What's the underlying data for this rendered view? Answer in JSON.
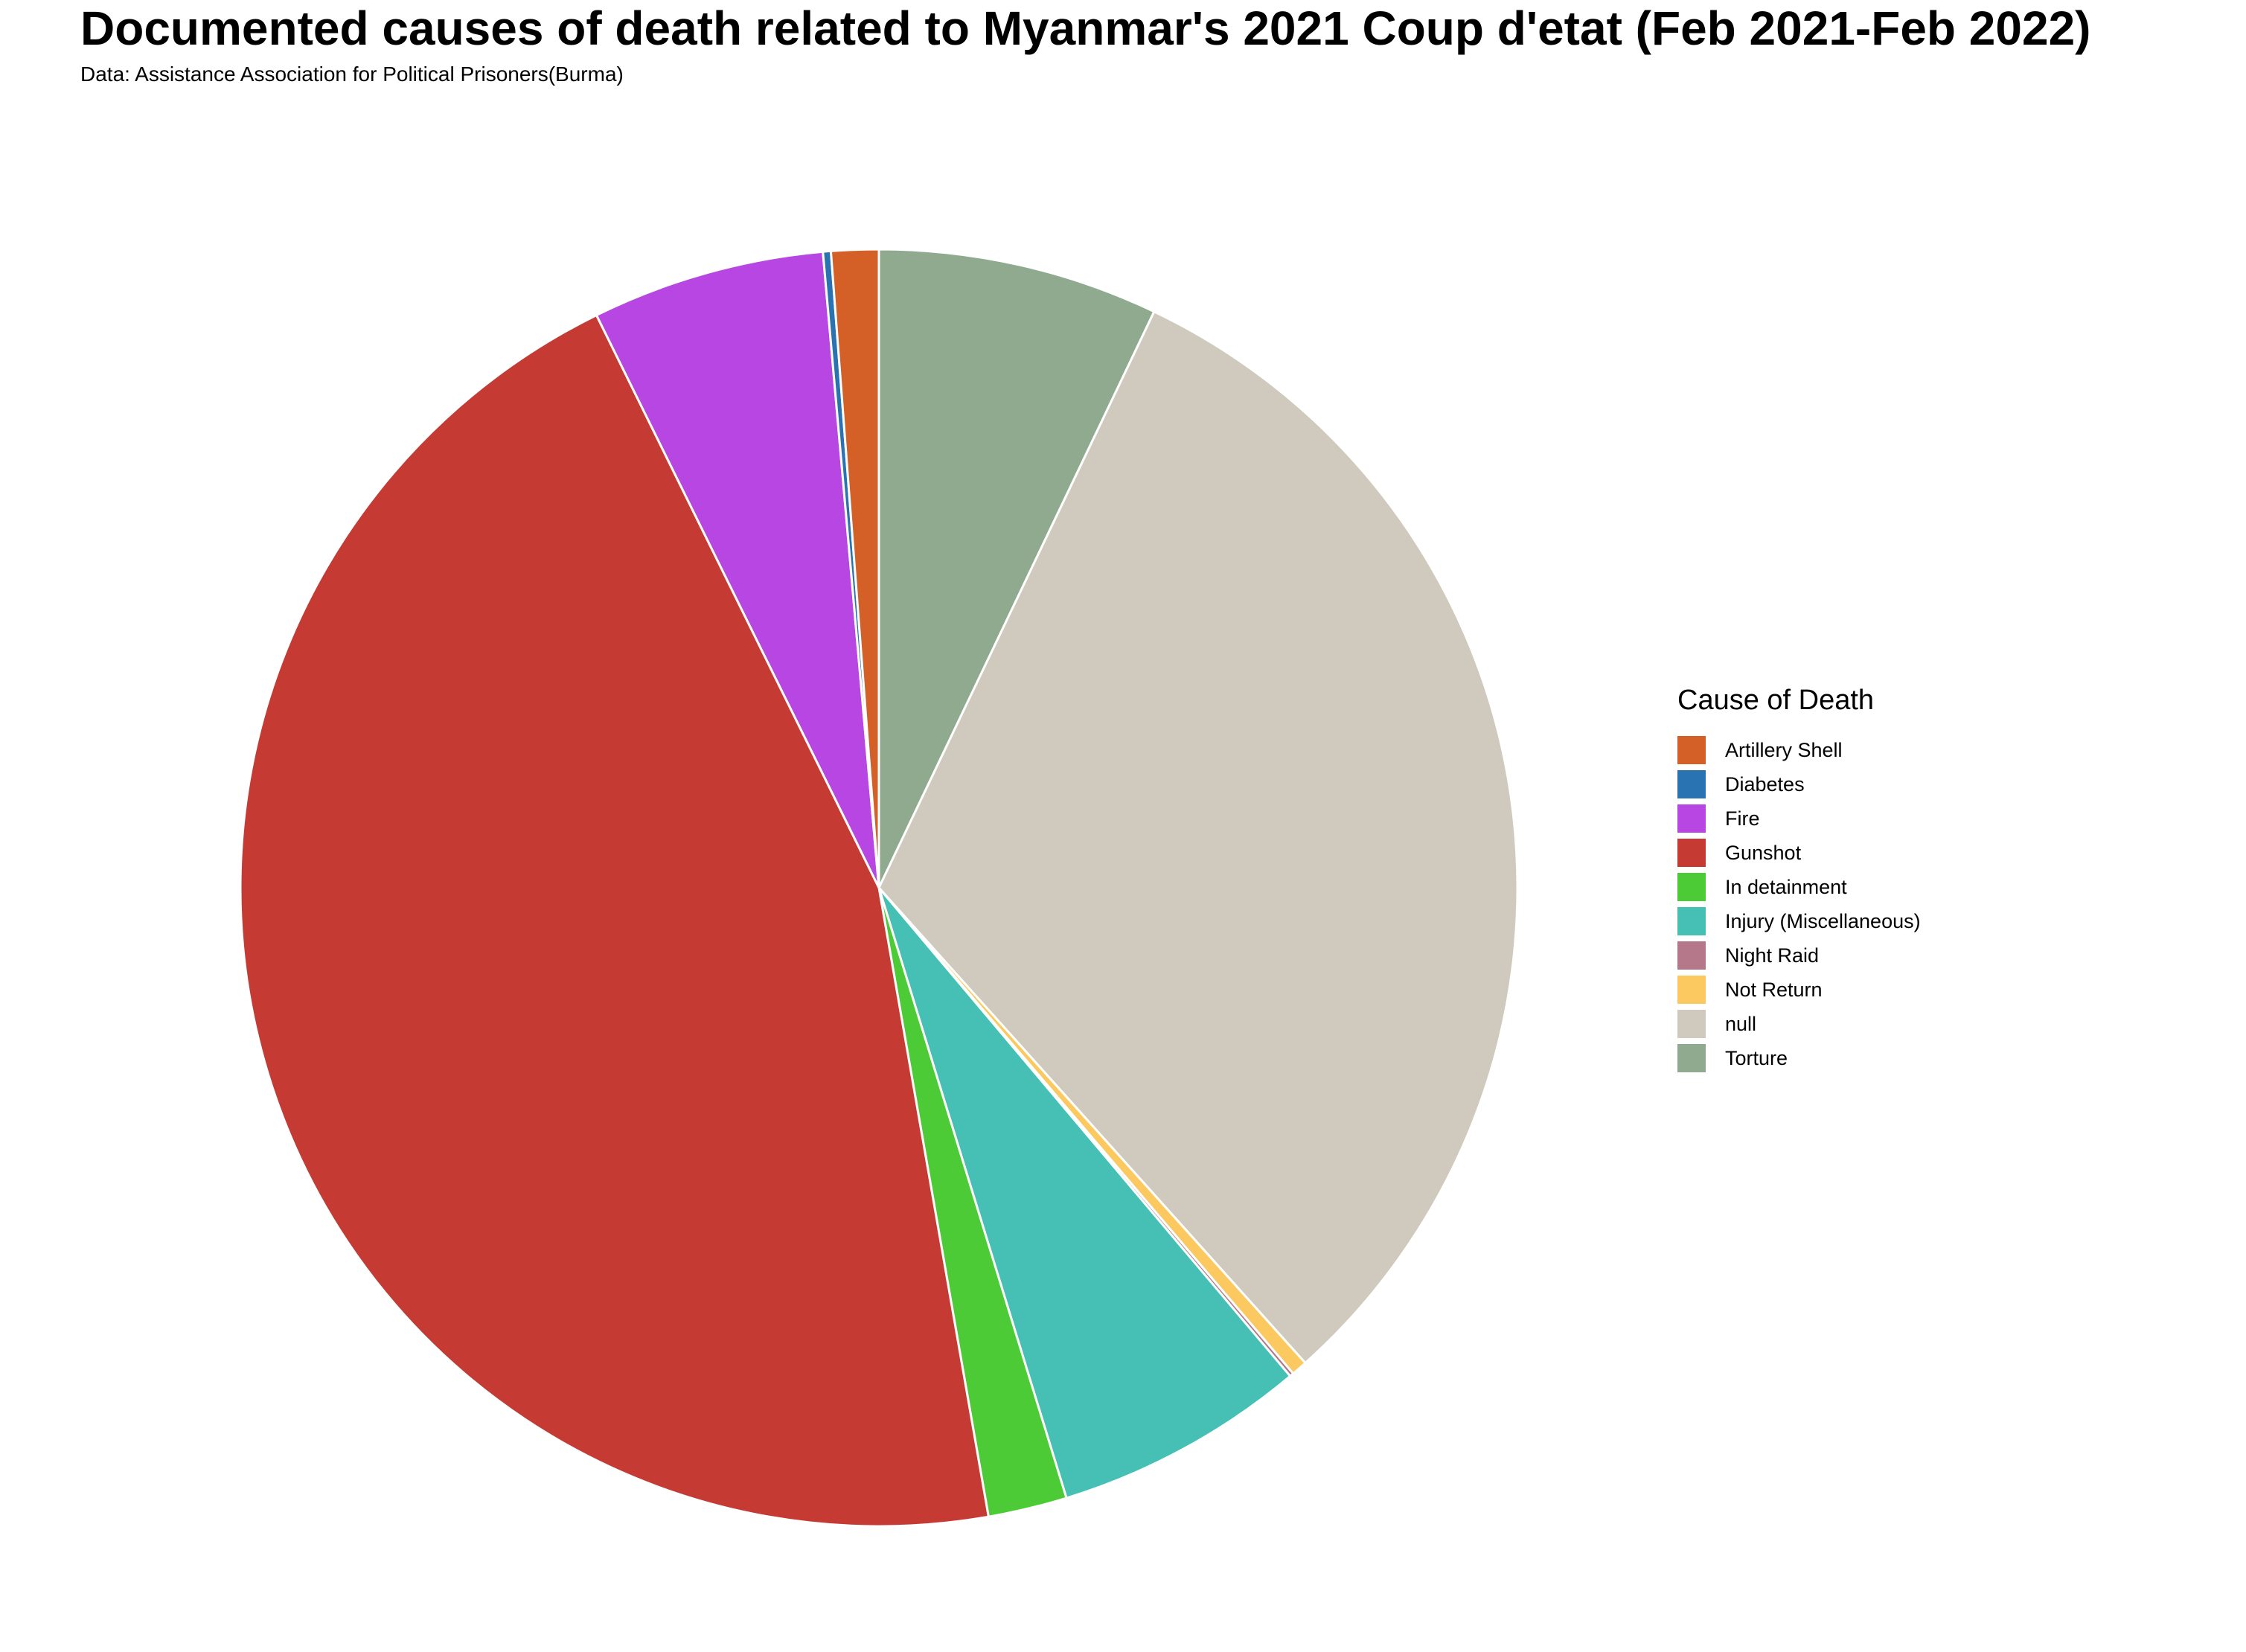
{
  "title": "Documented causes of death related to Myanmar's 2021 Coup d'etat (Feb 2021-Feb 2022)",
  "subtitle": "Data: Assistance Association for Political Prisoners(Burma)",
  "legend": {
    "title": "Cause of Death",
    "placement": "right"
  },
  "chart_data": {
    "type": "pie",
    "title": "Documented causes of death related to Myanmar's 2021 Coup d'etat (Feb 2021-Feb 2022)",
    "start_angle_deg": 0,
    "direction": "clockwise",
    "slices": [
      {
        "label": "Torture",
        "value": 7.1,
        "color": "#8faa8e"
      },
      {
        "label": "null",
        "value": 31.3,
        "color": "#d0cabe"
      },
      {
        "label": "Not Return",
        "value": 0.4,
        "color": "#fcc860"
      },
      {
        "label": "Night Raid",
        "value": 0.1,
        "color": "#b5788a"
      },
      {
        "label": "Injury (Miscellaneous)",
        "value": 6.4,
        "color": "#46c0b4"
      },
      {
        "label": "In detainment",
        "value": 2.0,
        "color": "#4dcb36"
      },
      {
        "label": "Gunshot",
        "value": 45.5,
        "color": "#c53b34"
      },
      {
        "label": "Fire",
        "value": 5.9,
        "color": "#b746e2"
      },
      {
        "label": "Diabetes",
        "value": 0.2,
        "color": "#2a73b3"
      },
      {
        "label": "Artillery Shell",
        "value": 1.2,
        "color": "#d45f27"
      }
    ],
    "legend_order": [
      "Artillery Shell",
      "Diabetes",
      "Fire",
      "Gunshot",
      "In detainment",
      "Injury (Miscellaneous)",
      "Night Raid",
      "Not Return",
      "null",
      "Torture"
    ]
  }
}
